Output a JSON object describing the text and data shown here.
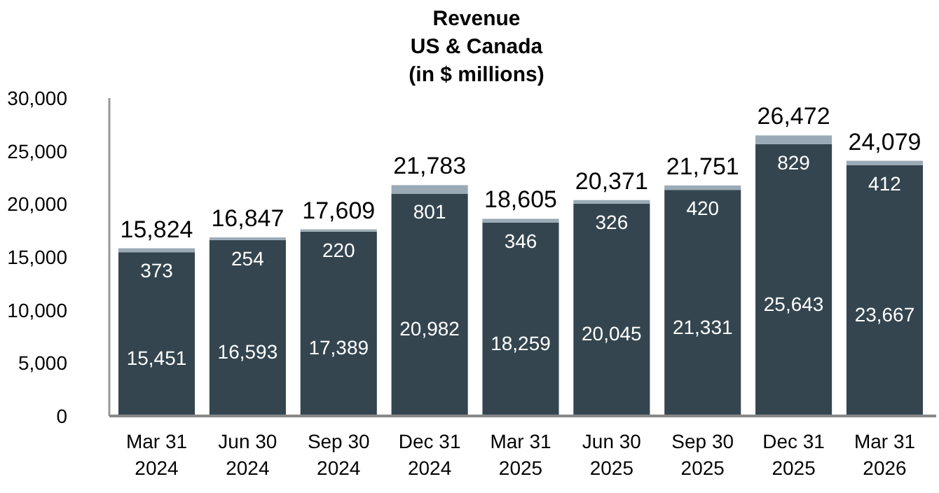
{
  "chart_data": {
    "type": "bar",
    "stacked": true,
    "title": "Revenue\nUS & Canada\n(in $ millions)",
    "categories": [
      "Mar 31\n2024",
      "Jun 30\n2024",
      "Sep 30\n2024",
      "Dec 31\n2024",
      "Mar 31\n2025",
      "Jun 30\n2025",
      "Sep 30\n2025",
      "Dec 31\n2025",
      "Mar 31\n2026"
    ],
    "series": [
      {
        "color": "#34454f",
        "values": [
          15451,
          16593,
          17389,
          20982,
          18259,
          20045,
          21331,
          25643,
          23667
        ],
        "value_labels": [
          "15,451",
          "16,593",
          "17,389",
          "20,982",
          "18,259",
          "20,045",
          "21,331",
          "25,643",
          "23,667"
        ]
      },
      {
        "color": "#9aaab6",
        "values": [
          373,
          254,
          220,
          801,
          346,
          326,
          420,
          829,
          412
        ],
        "value_labels": [
          "373",
          "254",
          "220",
          "801",
          "346",
          "326",
          "420",
          "829",
          "412"
        ]
      }
    ],
    "totals": [
      "15,824",
      "16,847",
      "17,609",
      "21,783",
      "18,605",
      "20,371",
      "21,751",
      "26,472",
      "24,079"
    ],
    "ylim": [
      0,
      30000
    ],
    "yticks": [
      {
        "value": 0,
        "label": "0"
      },
      {
        "value": 5000,
        "label": "5,000"
      },
      {
        "value": 10000,
        "label": "10,000"
      },
      {
        "value": 15000,
        "label": "15,000"
      },
      {
        "value": 20000,
        "label": "20,000"
      },
      {
        "value": 25000,
        "label": "25,000"
      },
      {
        "value": 30000,
        "label": "30,000"
      }
    ],
    "grid": false
  }
}
